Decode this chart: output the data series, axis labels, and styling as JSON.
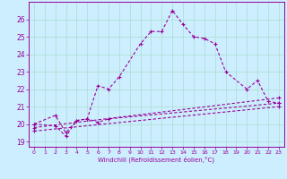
{
  "xlabel": "Windchill (Refroidissement éolien,°C)",
  "background_color": "#cceeff",
  "grid_color": "#aaddcc",
  "line_color": "#990099",
  "xlim": [
    -0.5,
    23.5
  ],
  "ylim": [
    18.7,
    27.0
  ],
  "yticks": [
    19,
    20,
    21,
    22,
    23,
    24,
    25,
    26
  ],
  "xticks": [
    0,
    1,
    2,
    3,
    4,
    5,
    6,
    7,
    8,
    9,
    10,
    11,
    12,
    13,
    14,
    15,
    16,
    17,
    18,
    19,
    20,
    21,
    22,
    23
  ],
  "series": [
    {
      "x": [
        0,
        2,
        3,
        4,
        5,
        6,
        7,
        8,
        10,
        11,
        12,
        13,
        14,
        15,
        16,
        17,
        18,
        20,
        21,
        22,
        23
      ],
      "y": [
        20.0,
        20.5,
        19.5,
        20.2,
        20.3,
        22.2,
        22.0,
        22.7,
        24.6,
        25.3,
        25.3,
        26.5,
        25.7,
        25.0,
        24.9,
        24.6,
        23.0,
        22.0,
        22.5,
        21.3,
        21.2
      ]
    },
    {
      "x": [
        0,
        2,
        3,
        4,
        5,
        6,
        7,
        23
      ],
      "y": [
        20.0,
        19.9,
        19.3,
        20.2,
        20.3,
        20.1,
        20.3,
        21.2
      ]
    },
    {
      "x": [
        0,
        23
      ],
      "y": [
        19.8,
        21.5
      ]
    },
    {
      "x": [
        0,
        23
      ],
      "y": [
        19.6,
        21.0
      ]
    }
  ]
}
